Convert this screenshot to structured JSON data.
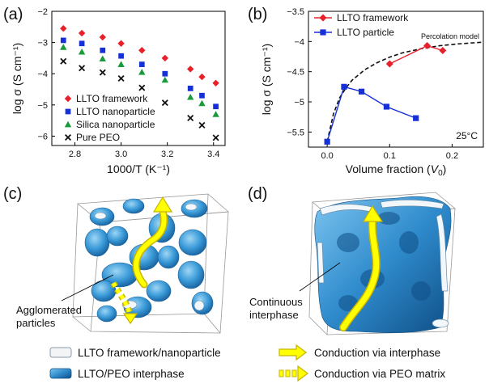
{
  "panels": {
    "a": "(a)",
    "b": "(b)",
    "c": "(c)",
    "d": "(d)"
  },
  "colors": {
    "framework": "#e8202a",
    "nanoparticle": "#1530d8",
    "silica": "#1a9a3a",
    "peo": "#111111",
    "interphase": "#3a9ad8",
    "arrow_fill": "#ffff00",
    "arrow_stroke": "#c8b400"
  },
  "chart_data": [
    {
      "type": "scatter",
      "panel": "a",
      "xlabel": "1000/T (K⁻¹)",
      "ylabel": "log σ (S cm⁻¹)",
      "xlim": [
        2.7,
        3.45
      ],
      "ylim": [
        -6.3,
        -2.0
      ],
      "xticks": [
        2.8,
        3.0,
        3.2,
        3.4
      ],
      "yticks": [
        -6,
        -5,
        -4,
        -3,
        -2
      ],
      "x": [
        2.75,
        2.83,
        2.92,
        3.0,
        3.09,
        3.19,
        3.3,
        3.35,
        3.41
      ],
      "series": [
        {
          "name": "LLTO framework",
          "marker": "diamond",
          "color": "#e8202a",
          "values": [
            -2.55,
            -2.7,
            -2.83,
            -3.03,
            -3.25,
            -3.5,
            -3.85,
            -4.1,
            -4.3
          ]
        },
        {
          "name": "LLTO nanoparticle",
          "marker": "square",
          "color": "#1530d8",
          "values": [
            -2.93,
            -3.03,
            -3.25,
            -3.43,
            -3.7,
            -4.0,
            -4.47,
            -4.7,
            -5.05
          ]
        },
        {
          "name": "Silica nanoparticle",
          "marker": "triangle",
          "color": "#1a9a3a",
          "values": [
            -3.15,
            -3.3,
            -3.52,
            -3.7,
            -3.95,
            -4.2,
            -4.75,
            -4.95,
            -5.3
          ]
        },
        {
          "name": "Pure PEO",
          "marker": "cross",
          "color": "#111111",
          "values": [
            -3.6,
            -3.82,
            -3.96,
            -4.15,
            -4.45,
            -4.93,
            -5.42,
            -5.65,
            -6.05
          ]
        }
      ]
    },
    {
      "type": "line",
      "panel": "b",
      "xlabel": "Volume fraction (",
      "xlabel_var": "V",
      "xlabel_sub": "0",
      "xlabel_end": ")",
      "ylabel": "log σ (S cm⁻¹)",
      "xlim": [
        -0.03,
        0.25
      ],
      "ylim": [
        -5.75,
        -3.5
      ],
      "xticks": [
        0.0,
        0.1,
        0.2
      ],
      "yticks": [
        -5.5,
        -5.0,
        -4.5,
        -4.0,
        -3.5
      ],
      "annotations": {
        "model": "Percolation model",
        "temperature": "25°C"
      },
      "series": [
        {
          "name": "LLTO framework",
          "marker": "diamond",
          "color": "#e8202a",
          "x": [
            0.1,
            0.16,
            0.185
          ],
          "values": [
            -4.37,
            -4.07,
            -4.15
          ]
        },
        {
          "name": "LLTO particle",
          "marker": "square",
          "color": "#1530d8",
          "x": [
            0.0,
            0.027,
            0.055,
            0.095,
            0.142
          ],
          "values": [
            -5.66,
            -4.75,
            -4.83,
            -5.08,
            -5.27
          ]
        }
      ],
      "model_curve": {
        "x": [
          0.0,
          0.01,
          0.02,
          0.03,
          0.04,
          0.06,
          0.08,
          0.1,
          0.12,
          0.15,
          0.18,
          0.21,
          0.25
        ],
        "values": [
          -5.66,
          -5.2,
          -4.93,
          -4.77,
          -4.64,
          -4.47,
          -4.35,
          -4.26,
          -4.19,
          -4.12,
          -4.07,
          -4.04,
          -4.01
        ]
      }
    }
  ],
  "illustrations": {
    "c_label": [
      "Agglomerated",
      "particles"
    ],
    "d_label": [
      "Continuous",
      "interphase"
    ]
  },
  "legend": [
    {
      "key": "framework_nano",
      "label": "LLTO framework/nanoparticle"
    },
    {
      "key": "interphase",
      "label": "LLTO/PEO interphase"
    },
    {
      "key": "via_interphase",
      "label": "Conduction via interphase"
    },
    {
      "key": "via_peo",
      "label": "Conduction via PEO matrix"
    }
  ]
}
